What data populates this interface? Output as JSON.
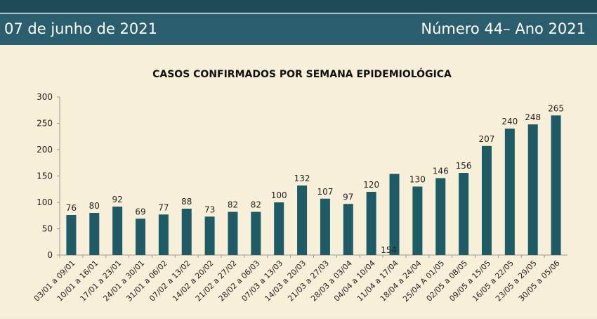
{
  "header": {
    "date": "07 de junho de 2021",
    "issue": "Número 44– Ano 2021"
  },
  "colors": {
    "bar": "#1d5b66",
    "header_bg": "#2a5e6c",
    "top_bar": "#1f4a57",
    "background": "#f6edd6"
  },
  "chart_data": {
    "type": "bar",
    "title": "CASOS CONFIRMADOS POR SEMANA EPIDEMIOLÓGICA",
    "xlabel": "",
    "ylabel": "",
    "ylim": [
      0,
      300
    ],
    "yticks": [
      0,
      50,
      100,
      150,
      200,
      250,
      300
    ],
    "grid": false,
    "categories": [
      "03/01 a 09/01",
      "10/01 a 16/01",
      "17/01 a 23/01",
      "24/01 a 30/01",
      "31/01 a 06/02",
      "07/02 a 13/02",
      "14/02 a 20/02",
      "21/02 a 27/02",
      "28/02 a 06/03",
      "07/03 a 13/03",
      "14/03 a 20/03",
      "21/03 a 27/03",
      "28/03 a 03/04",
      "04/04 a 10/04",
      "11/04 a 17/04",
      "18/04 a 24/04",
      "25/04 A 01/05",
      "02/05 a 08/05",
      "09/05 a 15/05",
      "16/05 a 22/05",
      "23/05 a 29/05",
      "30/05 a 05/06"
    ],
    "values": [
      76,
      80,
      92,
      69,
      77,
      88,
      73,
      82,
      82,
      100,
      132,
      107,
      97,
      120,
      154,
      130,
      146,
      156,
      207,
      240,
      248,
      265
    ]
  }
}
